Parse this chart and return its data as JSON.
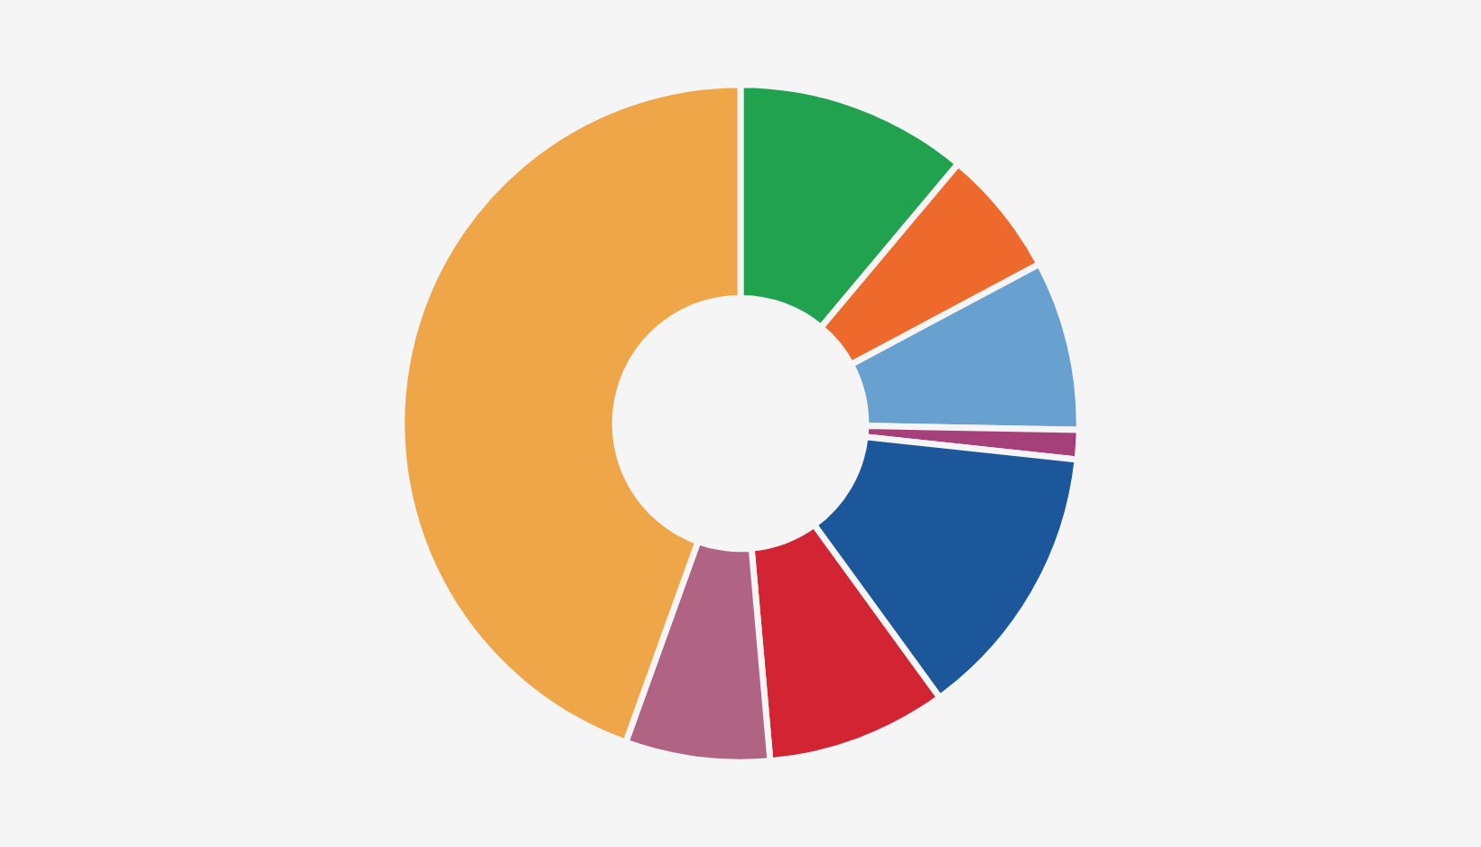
{
  "chart_data": {
    "type": "donut",
    "categories": [
      null,
      null,
      null,
      null,
      null,
      null,
      null,
      null
    ],
    "values": [
      11.1,
      6.1,
      8.1,
      1.4,
      13.3,
      8.6,
      6.9,
      44.5
    ],
    "colors": [
      "#21a24f",
      "#ee6a2c",
      "#68a1cf",
      "#a5407a",
      "#1c579b",
      "#d32433",
      "#b06383",
      "#eea648"
    ]
  }
}
